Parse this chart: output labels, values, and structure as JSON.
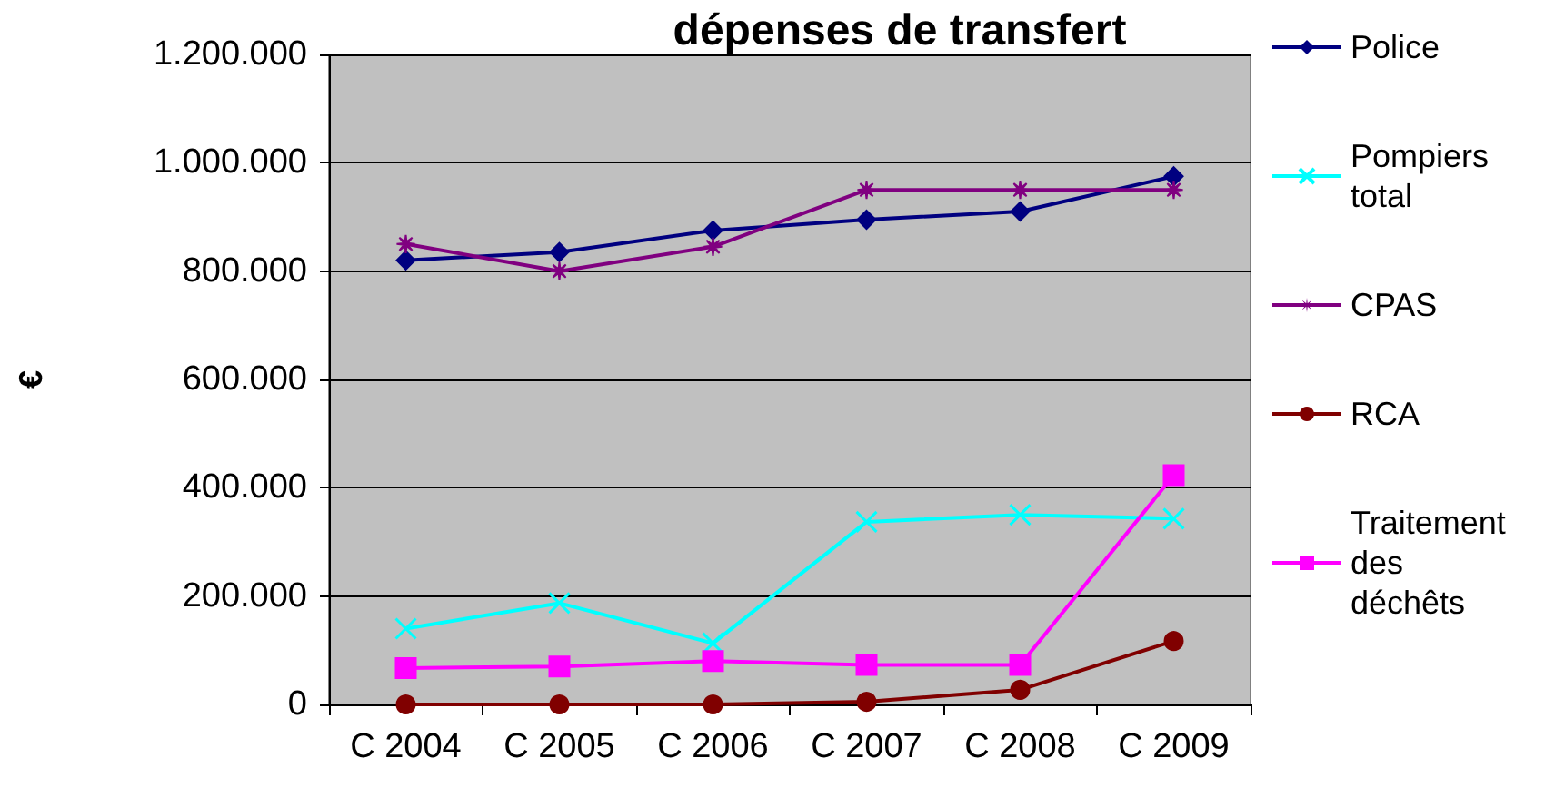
{
  "chart_data": {
    "type": "line",
    "title": "dépenses de transfert",
    "ylabel": "€",
    "categories": [
      "C 2004",
      "C 2005",
      "C 2006",
      "C 2007",
      "C 2008",
      "C 2009"
    ],
    "series": [
      {
        "name": "Police",
        "color": "#000080",
        "marker": "diamond",
        "values": [
          820000,
          835000,
          875000,
          895000,
          910000,
          975000
        ]
      },
      {
        "name": "Pompiers total",
        "color": "#00ffff",
        "marker": "cross",
        "values": [
          140000,
          187000,
          113000,
          337000,
          350000,
          343000
        ]
      },
      {
        "name": "CPAS",
        "color": "#800080",
        "marker": "star",
        "values": [
          850000,
          800000,
          845000,
          950000,
          950000,
          950000
        ]
      },
      {
        "name": "RCA",
        "color": "#800000",
        "marker": "circle",
        "values": [
          0,
          0,
          0,
          5000,
          27000,
          117000
        ]
      },
      {
        "name": "Traitement des déchêts",
        "color": "#ff00ff",
        "marker": "square",
        "values": [
          67000,
          70000,
          80000,
          73000,
          73000,
          423000
        ]
      }
    ],
    "ylim": [
      0,
      1200000
    ],
    "yticks": [
      {
        "value": 0,
        "label": "0"
      },
      {
        "value": 200000,
        "label": "200.000"
      },
      {
        "value": 400000,
        "label": "400.000"
      },
      {
        "value": 600000,
        "label": "600.000"
      },
      {
        "value": 800000,
        "label": "800.000"
      },
      {
        "value": 1000000,
        "label": "1.000.000"
      },
      {
        "value": 1200000,
        "label": "1.200.000"
      }
    ],
    "grid": "y",
    "legend": "right"
  }
}
